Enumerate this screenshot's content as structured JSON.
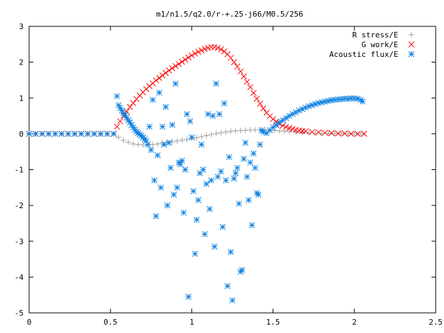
{
  "chart_data": {
    "type": "scatter",
    "title": "m1/n1.5/q2.0/r-+.25-j66/M0.5/256",
    "xlabel": "",
    "ylabel": "",
    "xlim": [
      0,
      2.5
    ],
    "ylim": [
      -5,
      3
    ],
    "x_ticks": [
      "0",
      "0.5",
      "1",
      "1.5",
      "2",
      "2.5"
    ],
    "y_ticks": [
      "-5",
      "-4",
      "-3",
      "-2",
      "-1",
      "0",
      "1",
      "2",
      "3"
    ],
    "grid": false,
    "legend_position": "top-right",
    "series": [
      {
        "name": "R stress/E",
        "marker": "plus",
        "color": "#a0a0a0",
        "points": [
          [
            0.0,
            0.0
          ],
          [
            0.04,
            0.0
          ],
          [
            0.08,
            0.0
          ],
          [
            0.12,
            0.0
          ],
          [
            0.16,
            0.0
          ],
          [
            0.2,
            0.0
          ],
          [
            0.24,
            0.0
          ],
          [
            0.28,
            0.0
          ],
          [
            0.32,
            0.0
          ],
          [
            0.36,
            0.0
          ],
          [
            0.4,
            0.0
          ],
          [
            0.44,
            0.0
          ],
          [
            0.48,
            0.0
          ],
          [
            0.52,
            0.0
          ],
          [
            0.55,
            -0.1
          ],
          [
            0.58,
            -0.18
          ],
          [
            0.61,
            -0.24
          ],
          [
            0.64,
            -0.28
          ],
          [
            0.67,
            -0.3
          ],
          [
            0.7,
            -0.31
          ],
          [
            0.73,
            -0.31
          ],
          [
            0.76,
            -0.3
          ],
          [
            0.79,
            -0.28
          ],
          [
            0.82,
            -0.26
          ],
          [
            0.85,
            -0.24
          ],
          [
            0.88,
            -0.22
          ],
          [
            0.91,
            -0.2
          ],
          [
            0.94,
            -0.18
          ],
          [
            0.97,
            -0.16
          ],
          [
            1.0,
            -0.13
          ],
          [
            1.03,
            -0.11
          ],
          [
            1.06,
            -0.08
          ],
          [
            1.09,
            -0.05
          ],
          [
            1.12,
            -0.02
          ],
          [
            1.15,
            0.01
          ],
          [
            1.18,
            0.03
          ],
          [
            1.21,
            0.05
          ],
          [
            1.24,
            0.07
          ],
          [
            1.27,
            0.08
          ],
          [
            1.3,
            0.09
          ],
          [
            1.33,
            0.1
          ],
          [
            1.36,
            0.11
          ],
          [
            1.39,
            0.11
          ],
          [
            1.42,
            0.11
          ],
          [
            1.45,
            0.11
          ],
          [
            1.48,
            0.1
          ],
          [
            1.51,
            0.09
          ],
          [
            1.54,
            0.08
          ],
          [
            1.57,
            0.07
          ],
          [
            1.6,
            0.06
          ],
          [
            1.64,
            0.05
          ],
          [
            1.68,
            0.04
          ],
          [
            1.72,
            0.03
          ],
          [
            1.76,
            0.02
          ],
          [
            1.8,
            0.02
          ],
          [
            1.84,
            0.01
          ],
          [
            1.88,
            0.01
          ],
          [
            1.92,
            0.01
          ],
          [
            1.96,
            0.0
          ],
          [
            2.0,
            0.0
          ],
          [
            2.04,
            0.0
          ]
        ]
      },
      {
        "name": "G work/E",
        "marker": "cross",
        "color": "#ff0000",
        "points": [
          [
            0.0,
            0.0
          ],
          [
            0.04,
            0.0
          ],
          [
            0.08,
            0.0
          ],
          [
            0.12,
            0.0
          ],
          [
            0.16,
            0.0
          ],
          [
            0.2,
            0.0
          ],
          [
            0.24,
            0.0
          ],
          [
            0.28,
            0.0
          ],
          [
            0.32,
            0.0
          ],
          [
            0.36,
            0.0
          ],
          [
            0.4,
            0.0
          ],
          [
            0.44,
            0.0
          ],
          [
            0.48,
            0.0
          ],
          [
            0.52,
            0.0
          ],
          [
            0.54,
            0.2
          ],
          [
            0.56,
            0.35
          ],
          [
            0.58,
            0.5
          ],
          [
            0.6,
            0.62
          ],
          [
            0.62,
            0.75
          ],
          [
            0.64,
            0.86
          ],
          [
            0.66,
            0.97
          ],
          [
            0.68,
            1.07
          ],
          [
            0.7,
            1.16
          ],
          [
            0.72,
            1.25
          ],
          [
            0.74,
            1.33
          ],
          [
            0.76,
            1.41
          ],
          [
            0.78,
            1.49
          ],
          [
            0.8,
            1.56
          ],
          [
            0.82,
            1.63
          ],
          [
            0.84,
            1.7
          ],
          [
            0.86,
            1.77
          ],
          [
            0.88,
            1.83
          ],
          [
            0.9,
            1.89
          ],
          [
            0.92,
            1.95
          ],
          [
            0.94,
            2.01
          ],
          [
            0.96,
            2.07
          ],
          [
            0.98,
            2.13
          ],
          [
            1.0,
            2.19
          ],
          [
            1.02,
            2.24
          ],
          [
            1.04,
            2.29
          ],
          [
            1.06,
            2.33
          ],
          [
            1.08,
            2.37
          ],
          [
            1.1,
            2.4
          ],
          [
            1.12,
            2.42
          ],
          [
            1.14,
            2.42
          ],
          [
            1.16,
            2.4
          ],
          [
            1.18,
            2.36
          ],
          [
            1.2,
            2.3
          ],
          [
            1.22,
            2.22
          ],
          [
            1.24,
            2.12
          ],
          [
            1.26,
            2.0
          ],
          [
            1.28,
            1.88
          ],
          [
            1.3,
            1.74
          ],
          [
            1.32,
            1.6
          ],
          [
            1.34,
            1.45
          ],
          [
            1.36,
            1.3
          ],
          [
            1.38,
            1.14
          ],
          [
            1.4,
            0.98
          ],
          [
            1.42,
            0.84
          ],
          [
            1.44,
            0.71
          ],
          [
            1.46,
            0.59
          ],
          [
            1.48,
            0.49
          ],
          [
            1.5,
            0.41
          ],
          [
            1.52,
            0.34
          ],
          [
            1.54,
            0.28
          ],
          [
            1.56,
            0.23
          ],
          [
            1.58,
            0.19
          ],
          [
            1.6,
            0.16
          ],
          [
            1.62,
            0.13
          ],
          [
            1.64,
            0.11
          ],
          [
            1.66,
            0.09
          ],
          [
            1.68,
            0.08
          ],
          [
            1.7,
            0.07
          ],
          [
            1.74,
            0.05
          ],
          [
            1.78,
            0.04
          ],
          [
            1.82,
            0.03
          ],
          [
            1.86,
            0.02
          ],
          [
            1.9,
            0.01
          ],
          [
            1.94,
            0.01
          ],
          [
            1.98,
            0.0
          ],
          [
            2.02,
            0.0
          ],
          [
            2.06,
            0.0
          ]
        ]
      },
      {
        "name": "Acoustic flux/E",
        "marker": "star",
        "color": "#0a7fe0",
        "points": [
          [
            0.0,
            0.0
          ],
          [
            0.04,
            0.0
          ],
          [
            0.08,
            0.0
          ],
          [
            0.12,
            0.0
          ],
          [
            0.16,
            0.0
          ],
          [
            0.2,
            0.0
          ],
          [
            0.24,
            0.0
          ],
          [
            0.28,
            0.0
          ],
          [
            0.32,
            0.0
          ],
          [
            0.36,
            0.0
          ],
          [
            0.4,
            0.0
          ],
          [
            0.44,
            0.0
          ],
          [
            0.48,
            0.0
          ],
          [
            0.52,
            0.0
          ],
          [
            0.54,
            1.05
          ],
          [
            0.55,
            0.8
          ],
          [
            0.56,
            0.72
          ],
          [
            0.57,
            0.65
          ],
          [
            0.58,
            0.58
          ],
          [
            0.59,
            0.52
          ],
          [
            0.6,
            0.45
          ],
          [
            0.61,
            0.38
          ],
          [
            0.62,
            0.32
          ],
          [
            0.63,
            0.25
          ],
          [
            0.64,
            0.18
          ],
          [
            0.65,
            0.12
          ],
          [
            0.66,
            0.06
          ],
          [
            0.67,
            0.02
          ],
          [
            0.68,
            -0.02
          ],
          [
            0.69,
            -0.05
          ],
          [
            0.7,
            -0.1
          ],
          [
            0.71,
            -0.15
          ],
          [
            0.72,
            -0.2
          ],
          [
            0.73,
            -0.3
          ],
          [
            0.75,
            -0.45
          ],
          [
            0.74,
            0.2
          ],
          [
            0.76,
            0.95
          ],
          [
            0.77,
            -1.3
          ],
          [
            0.78,
            -2.3
          ],
          [
            0.79,
            -0.6
          ],
          [
            0.8,
            1.15
          ],
          [
            0.81,
            -1.5
          ],
          [
            0.82,
            0.2
          ],
          [
            0.83,
            -0.3
          ],
          [
            0.84,
            0.75
          ],
          [
            0.85,
            -2.0
          ],
          [
            0.86,
            -0.25
          ],
          [
            0.87,
            -0.95
          ],
          [
            0.88,
            0.25
          ],
          [
            0.89,
            -1.7
          ],
          [
            0.9,
            1.4
          ],
          [
            0.91,
            -1.5
          ],
          [
            0.92,
            -0.8
          ],
          [
            0.93,
            -0.85
          ],
          [
            0.94,
            -0.75
          ],
          [
            0.95,
            -2.2
          ],
          [
            0.96,
            -1.0
          ],
          [
            0.97,
            0.55
          ],
          [
            0.98,
            -4.55
          ],
          [
            0.99,
            0.35
          ],
          [
            1.0,
            -0.1
          ],
          [
            1.01,
            -1.6
          ],
          [
            1.02,
            -3.35
          ],
          [
            1.03,
            -2.4
          ],
          [
            1.04,
            -1.85
          ],
          [
            1.05,
            -1.1
          ],
          [
            1.06,
            -0.3
          ],
          [
            1.07,
            -1.0
          ],
          [
            1.08,
            -2.8
          ],
          [
            1.09,
            -1.4
          ],
          [
            1.1,
            0.55
          ],
          [
            1.11,
            -2.1
          ],
          [
            1.12,
            -1.3
          ],
          [
            1.13,
            0.5
          ],
          [
            1.14,
            -3.15
          ],
          [
            1.15,
            1.4
          ],
          [
            1.16,
            -1.2
          ],
          [
            1.17,
            0.55
          ],
          [
            1.18,
            -1.05
          ],
          [
            1.19,
            -2.6
          ],
          [
            1.2,
            0.85
          ],
          [
            1.21,
            -1.3
          ],
          [
            1.22,
            -4.25
          ],
          [
            1.23,
            -0.65
          ],
          [
            1.24,
            -3.3
          ],
          [
            1.25,
            -4.65
          ],
          [
            1.26,
            -1.25
          ],
          [
            1.27,
            -1.1
          ],
          [
            1.28,
            -0.95
          ],
          [
            1.29,
            -1.95
          ],
          [
            1.3,
            -3.85
          ],
          [
            1.31,
            -3.8
          ],
          [
            1.32,
            -0.7
          ],
          [
            1.33,
            -0.25
          ],
          [
            1.34,
            -1.2
          ],
          [
            1.35,
            -1.85
          ],
          [
            1.36,
            -0.8
          ],
          [
            1.37,
            -2.55
          ],
          [
            1.38,
            -0.55
          ],
          [
            1.39,
            -0.95
          ],
          [
            1.4,
            -1.65
          ],
          [
            1.41,
            -1.7
          ],
          [
            1.42,
            -0.3
          ],
          [
            1.43,
            0.1
          ],
          [
            1.44,
            0.05
          ],
          [
            1.46,
            0.02
          ],
          [
            1.48,
            0.1
          ],
          [
            1.5,
            0.18
          ],
          [
            1.52,
            0.25
          ],
          [
            1.54,
            0.32
          ],
          [
            1.56,
            0.38
          ],
          [
            1.58,
            0.44
          ],
          [
            1.6,
            0.5
          ],
          [
            1.62,
            0.55
          ],
          [
            1.64,
            0.6
          ],
          [
            1.66,
            0.65
          ],
          [
            1.68,
            0.69
          ],
          [
            1.7,
            0.73
          ],
          [
            1.72,
            0.77
          ],
          [
            1.74,
            0.8
          ],
          [
            1.76,
            0.83
          ],
          [
            1.78,
            0.86
          ],
          [
            1.8,
            0.88
          ],
          [
            1.82,
            0.9
          ],
          [
            1.84,
            0.92
          ],
          [
            1.86,
            0.94
          ],
          [
            1.88,
            0.95
          ],
          [
            1.9,
            0.96
          ],
          [
            1.92,
            0.97
          ],
          [
            1.94,
            0.98
          ],
          [
            1.96,
            0.98
          ],
          [
            1.98,
            0.99
          ],
          [
            2.0,
            0.99
          ],
          [
            2.02,
            0.98
          ],
          [
            2.04,
            0.95
          ],
          [
            2.05,
            0.9
          ]
        ]
      }
    ]
  }
}
